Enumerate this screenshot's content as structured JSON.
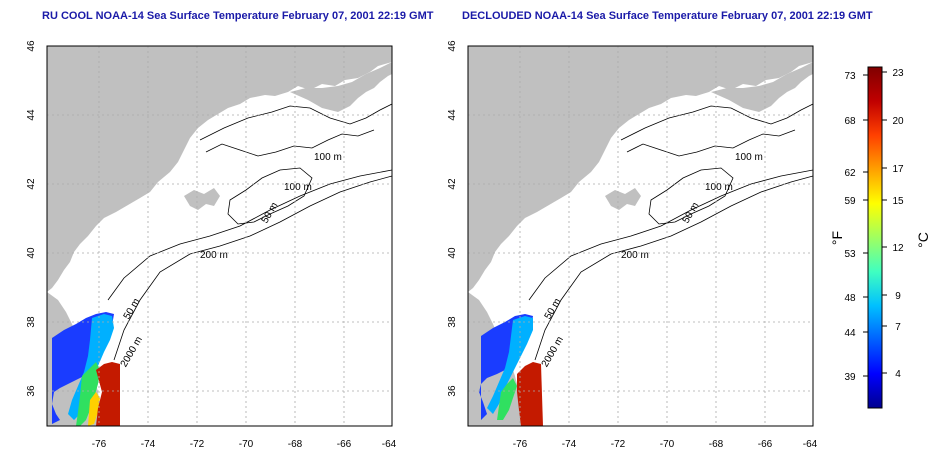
{
  "panels": [
    {
      "title": "RU COOL NOAA-14 Sea Surface Temperature February 07, 2001 22:19 GMT",
      "contour_labels": [
        "100 m",
        "100 m",
        "50 m",
        "200 m",
        "50 m",
        "2000 m"
      ]
    },
    {
      "title": "DECLOUDED NOAA-14 Sea Surface Temperature February 07, 2001 22:19 GMT",
      "contour_labels": [
        "100 m",
        "100 m",
        "50 m",
        "200 m",
        "50 m",
        "2000 m"
      ]
    }
  ],
  "axes": {
    "lon_ticks": [
      "-76",
      "-74",
      "-72",
      "-70",
      "-68",
      "-66",
      "-64"
    ],
    "lat_ticks": [
      "36",
      "38",
      "40",
      "42",
      "44",
      "46"
    ],
    "lon_range": [
      -77,
      -63
    ],
    "lat_range": [
      35,
      46
    ],
    "grid": "dotted"
  },
  "colorbar": {
    "fahrenheit_ticks": [
      "73",
      "68",
      "62",
      "59",
      "53",
      "48",
      "44",
      "39"
    ],
    "celsius_ticks": [
      "23",
      "20",
      "17",
      "15",
      "12",
      "9",
      "7",
      "4"
    ],
    "fahrenheit_unit": "°F",
    "celsius_unit": "°C",
    "colors": [
      "#00008f",
      "#0000ff",
      "#0060ff",
      "#00c0ff",
      "#40ffc0",
      "#a0ff60",
      "#ffff00",
      "#ffa000",
      "#ff4000",
      "#c00000",
      "#800000"
    ]
  },
  "colors": {
    "land": "#c0c0c0",
    "title": "#1a1aa8"
  }
}
